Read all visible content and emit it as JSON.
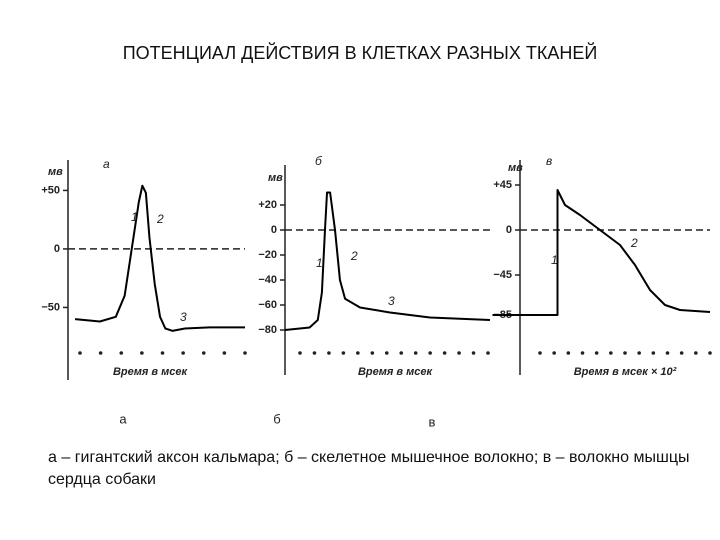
{
  "title": "ПОТЕНЦИАЛ ДЕЙСТВИЯ В КЛЕТКАХ  РАЗНЫХ ТКАНЕЙ",
  "panel_captions": [
    "а",
    "б",
    "в"
  ],
  "caption": "а – гигантский аксон кальмара; б – скелетное мышечное волокно; в – волокно мышцы сердца собаки",
  "chart_data": [
    {
      "type": "line",
      "panel_label": "а",
      "y_unit": "мв",
      "xlabel": "Время в мсек",
      "x": [
        4,
        18,
        27,
        32,
        36,
        40,
        42,
        44,
        46,
        49,
        52,
        55,
        59,
        66,
        80,
        100
      ],
      "values": [
        -60,
        -62,
        -58,
        -40,
        0,
        40,
        54,
        48,
        10,
        -30,
        -58,
        -68,
        -70,
        -68,
        -67,
        -67
      ],
      "color": "#000000",
      "xlim": [
        0,
        100
      ],
      "ylim": [
        -112,
        76
      ],
      "yticks": [
        {
          "value": 50,
          "label": "+50"
        },
        0,
        {
          "value": -50,
          "label": "−50"
        }
      ],
      "reference_line": 0,
      "annotations": [
        "1",
        "2",
        "3"
      ]
    },
    {
      "type": "line",
      "panel_label": "б",
      "y_unit": "мв",
      "xlabel": "Время в мсек",
      "x": [
        0,
        12,
        16,
        18,
        19.5,
        20.5,
        22,
        24.4,
        26.8,
        29.3,
        36.6,
        51.2,
        70.7,
        100
      ],
      "values": [
        -80,
        -78,
        -72,
        -50,
        0,
        30,
        30,
        0,
        -40,
        -55,
        -62,
        -66,
        -70,
        -72
      ],
      "color": "#000000",
      "xlim": [
        0,
        100
      ],
      "ylim": [
        -116,
        52
      ],
      "yticks": [
        {
          "value": 20,
          "label": "+20"
        },
        0,
        {
          "value": -20,
          "label": "−20"
        },
        {
          "value": -40,
          "label": "−40"
        },
        {
          "value": -60,
          "label": "−60"
        },
        {
          "value": -80,
          "label": "−80"
        }
      ],
      "reference_line": 0,
      "annotations": [
        "1",
        "2",
        "3"
      ]
    },
    {
      "type": "line",
      "panel_label": "в",
      "y_unit": "мв",
      "xlabel": "Время в мсек × 10²",
      "x": [
        -11,
        15,
        15,
        18,
        24,
        32,
        40,
        46,
        52,
        58,
        64,
        76
      ],
      "values": [
        -85,
        -85,
        40,
        25,
        15,
        0,
        -15,
        -35,
        -60,
        -75,
        -80,
        -82
      ],
      "color": "#000000",
      "xlim": [
        -11,
        76
      ],
      "ylim": [
        -145,
        70
      ],
      "yticks": [
        {
          "value": 45,
          "label": "+45"
        },
        0,
        {
          "value": -45,
          "label": "−45"
        },
        {
          "value": -85,
          "label": "−85"
        }
      ],
      "reference_line": 0,
      "annotations": [
        "1",
        "2"
      ]
    }
  ]
}
